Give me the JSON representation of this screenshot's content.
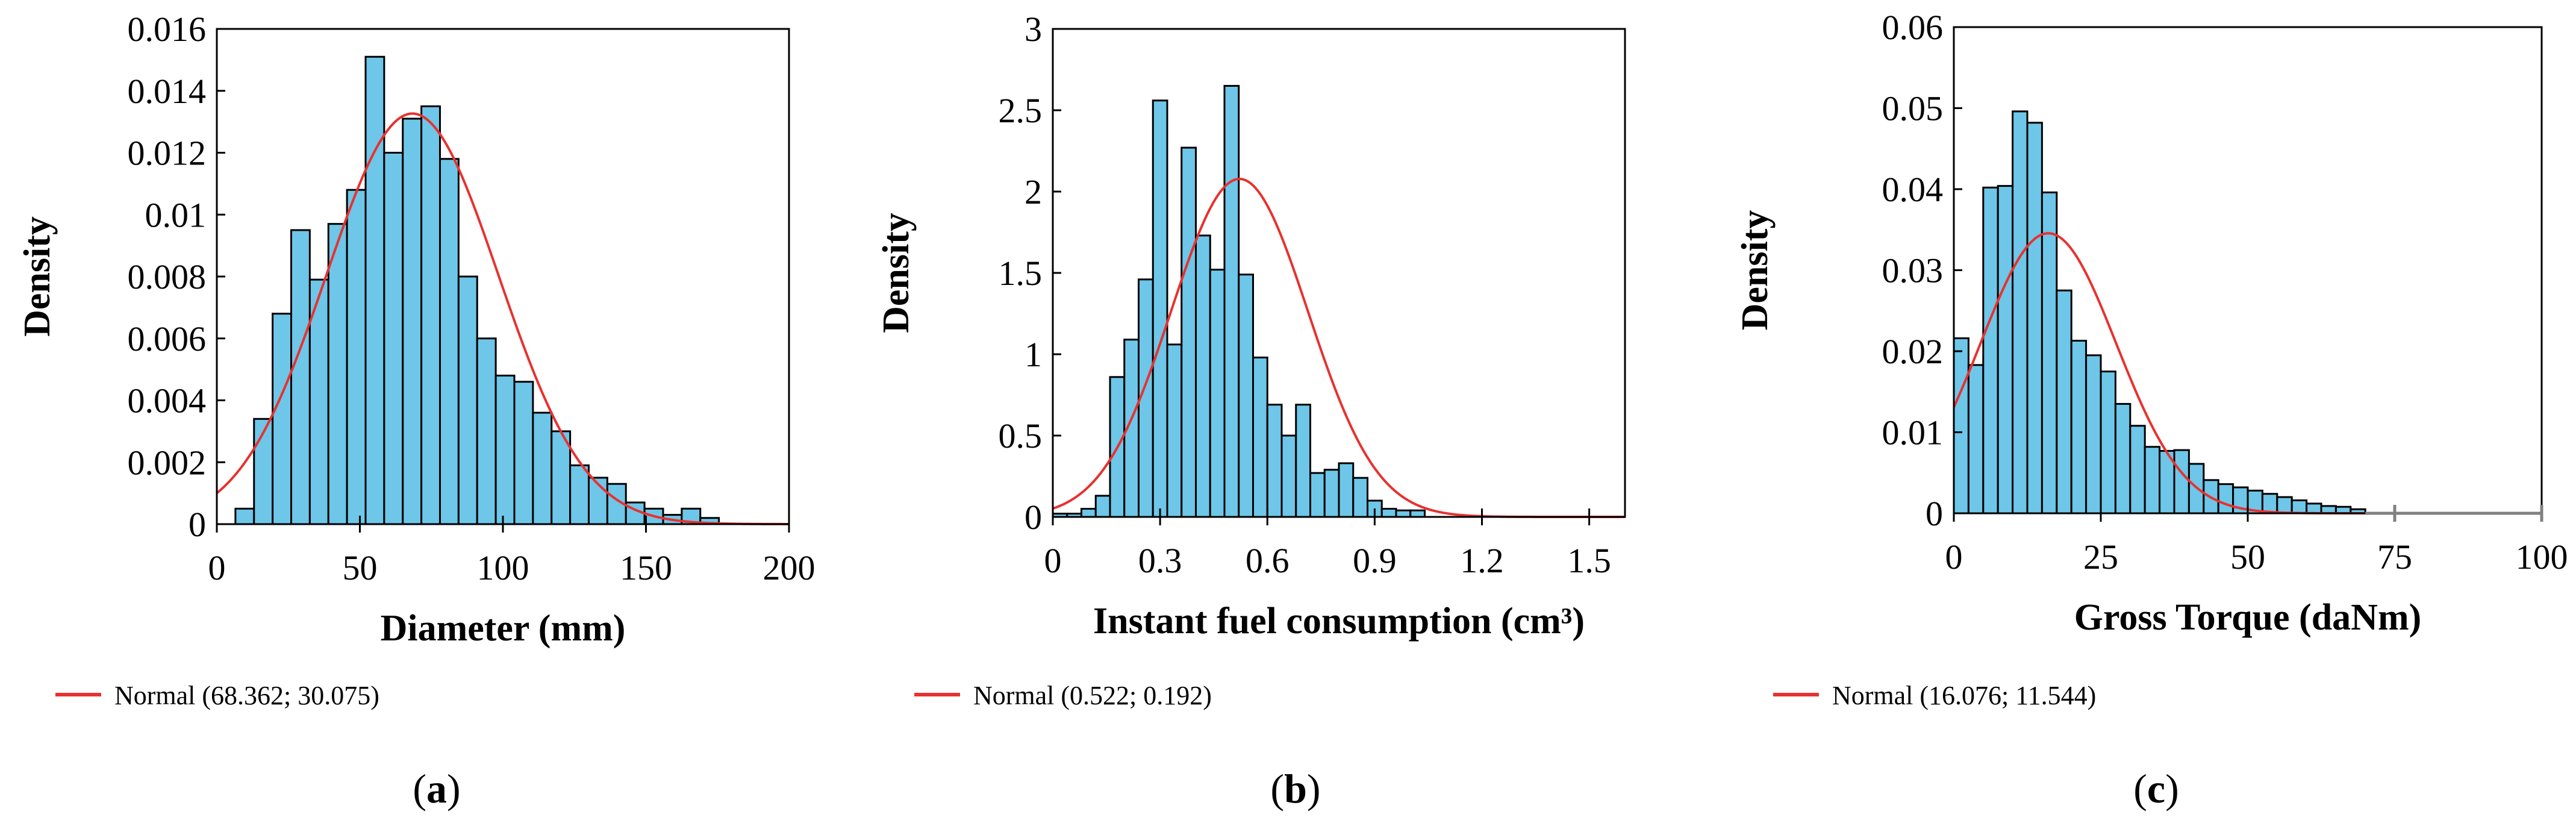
{
  "colors": {
    "bar_fill": "#6EC6E8",
    "bar_stroke": "#000000",
    "curve": "#E8312F",
    "axis": "#000000",
    "extra_tick": "#808080"
  },
  "chart_data": [
    {
      "type": "bar",
      "id": "a",
      "caption": "a",
      "xlabel": "Diameter (mm)",
      "ylabel": "Density",
      "xlim": [
        0,
        200
      ],
      "ylim": [
        0,
        0.016
      ],
      "xticks": [
        0,
        50,
        100,
        150,
        200
      ],
      "xtick_labels": [
        "0",
        "50",
        "100",
        "150",
        "200"
      ],
      "yticks": [
        0,
        0.002,
        0.004,
        0.006,
        0.008,
        0.01,
        0.012,
        0.014,
        0.016
      ],
      "ytick_labels": [
        "0",
        "0.002",
        "0.004",
        "0.006",
        "0.008",
        "0.01",
        "0.012",
        "0.014",
        "0.016"
      ],
      "bin_start": 0,
      "bin_width": 6.5,
      "values": [
        0,
        0.0005,
        0.0034,
        0.0068,
        0.0095,
        0.0079,
        0.0097,
        0.0108,
        0.0151,
        0.012,
        0.0131,
        0.0135,
        0.0118,
        0.008,
        0.006,
        0.0048,
        0.0046,
        0.0036,
        0.003,
        0.0019,
        0.0015,
        0.0013,
        0.0007,
        0.0005,
        0.0003,
        0.0005,
        0.0002
      ],
      "normal": {
        "mean": 68.362,
        "sd": 30.075
      },
      "curve_x_range": [
        0,
        200
      ],
      "legend": "Normal (68.362; 30.075)"
    },
    {
      "type": "bar",
      "id": "b",
      "caption": "b",
      "xlabel": "Instant fuel consumption (cm³)",
      "ylabel": "Density",
      "xlim": [
        0,
        1.6
      ],
      "ylim": [
        0,
        3
      ],
      "xticks": [
        0,
        0.3,
        0.6,
        0.9,
        1.2,
        1.5
      ],
      "xtick_labels": [
        "0",
        "0.3",
        "0.6",
        "0.9",
        "1.2",
        "1.5"
      ],
      "yticks": [
        0,
        0.5,
        1,
        1.5,
        2,
        2.5,
        3
      ],
      "ytick_labels": [
        "0",
        "0.5",
        "1",
        "1.5",
        "2",
        "2.5",
        "3"
      ],
      "bin_start": 0,
      "bin_width": 0.04,
      "values": [
        0.02,
        0.02,
        0.05,
        0.13,
        0.86,
        1.09,
        1.46,
        2.56,
        1.06,
        2.27,
        1.73,
        1.52,
        2.65,
        1.49,
        0.98,
        0.69,
        0.5,
        0.69,
        0.27,
        0.29,
        0.33,
        0.24,
        0.1,
        0.05,
        0.04,
        0.04
      ],
      "normal": {
        "mean": 0.522,
        "sd": 0.192
      },
      "curve_x_range": [
        0,
        1.6
      ],
      "legend": "Normal (0.522; 0.192)"
    },
    {
      "type": "bar",
      "id": "c",
      "caption": "c",
      "xlabel": "Gross Torque (daNm)",
      "ylabel": "Density",
      "xlim": [
        0,
        100
      ],
      "ylim": [
        0,
        0.06
      ],
      "xticks": [
        0,
        25,
        50,
        75,
        100
      ],
      "xtick_labels": [
        "0",
        "25",
        "50",
        "75",
        "100"
      ],
      "yticks": [
        0,
        0.01,
        0.02,
        0.03,
        0.04,
        0.05,
        0.06
      ],
      "ytick_labels": [
        "0",
        "0.01",
        "0.02",
        "0.03",
        "0.04",
        "0.05",
        "0.06"
      ],
      "bin_start": 0,
      "bin_width": 2.5,
      "values": [
        0.0216,
        0.0183,
        0.0402,
        0.0404,
        0.0496,
        0.0482,
        0.0396,
        0.0275,
        0.0213,
        0.0195,
        0.0175,
        0.0135,
        0.0108,
        0.0082,
        0.0077,
        0.0078,
        0.0061,
        0.0041,
        0.0036,
        0.0032,
        0.0028,
        0.0024,
        0.002,
        0.0016,
        0.0012,
        0.0009,
        0.0008,
        0.0005
      ],
      "normal": {
        "mean": 16.076,
        "sd": 11.544
      },
      "curve_x_range": [
        0,
        70
      ],
      "legend": "Normal (16.076; 11.544)"
    }
  ]
}
